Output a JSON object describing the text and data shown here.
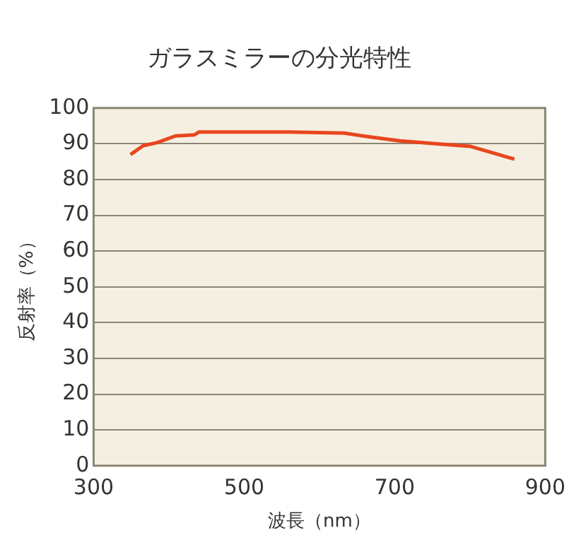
{
  "chart_data": {
    "type": "line",
    "title": "ガラスミラーの分光特性",
    "xlabel": "波長（nm）",
    "ylabel": "反射率（%）",
    "x": [
      349,
      366,
      384,
      409,
      434,
      440,
      500,
      560,
      633,
      664,
      707,
      757,
      800,
      838,
      859
    ],
    "series": [
      {
        "color": "#e8461e",
        "values": [
          87,
          89.5,
          90.3,
          92.2,
          92.5,
          93.3,
          93.3,
          93.3,
          93,
          92,
          90.8,
          90,
          89.3,
          87,
          85.7
        ]
      }
    ],
    "xlim": [
      300,
      900
    ],
    "xticks": [
      300,
      500,
      700,
      900
    ],
    "ylim": [
      0,
      100
    ],
    "yticks": [
      0,
      10,
      20,
      30,
      40,
      50,
      60,
      70,
      80,
      90,
      100
    ],
    "grid": "y",
    "marker": "none",
    "line_style": "solid",
    "legend": false
  }
}
